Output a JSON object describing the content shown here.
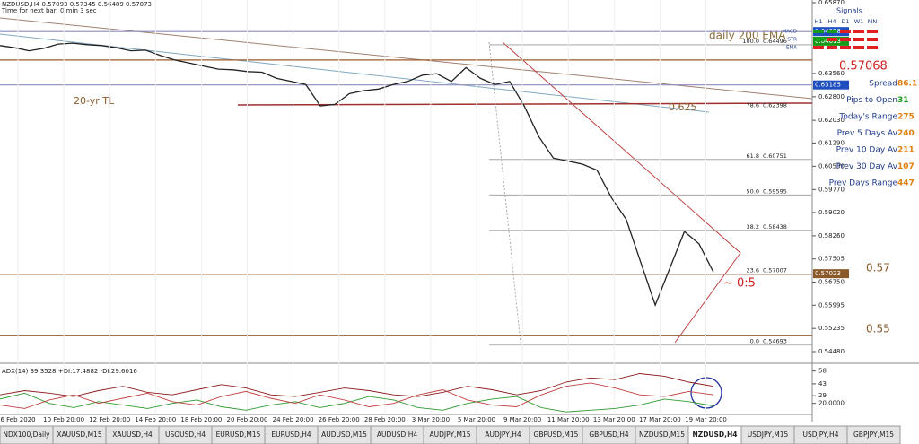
{
  "header": {
    "symbol": "NZDUSD,H4  0.57093 0.57345 0.56489 0.57073",
    "timer": "Time for next bar: 0 min 3 sec"
  },
  "chart_data": {
    "type": "line",
    "name": "NZDUSD close",
    "color": "#222222",
    "values": [
      0.6447,
      0.644,
      0.643,
      0.6438,
      0.6452,
      0.6455,
      0.645,
      0.6447,
      0.644,
      0.643,
      0.6432,
      0.6415,
      0.64,
      0.639,
      0.638,
      0.637,
      0.6368,
      0.6362,
      0.636,
      0.634,
      0.633,
      0.632,
      0.625,
      0.6255,
      0.629,
      0.63,
      0.6305,
      0.632,
      0.633,
      0.635,
      0.6355,
      0.633,
      0.6375,
      0.634,
      0.632,
      0.633,
      0.625,
      0.615,
      0.608,
      0.607,
      0.606,
      0.604,
      0.595,
      0.588,
      0.574,
      0.56,
      0.572,
      0.584,
      0.58,
      0.5707
    ],
    "ylim": [
      0.5448,
      0.6587
    ],
    "yticks": [
      {
        "value": 0.6587,
        "label": "0.65870"
      },
      {
        "value": 0.6356,
        "label": "0.63560"
      },
      {
        "value": 0.628,
        "label": "0.62800"
      },
      {
        "value": 0.6203,
        "label": "0.62030"
      },
      {
        "value": 0.6129,
        "label": "0.61290"
      },
      {
        "value": 0.6053,
        "label": "0.60530"
      },
      {
        "value": 0.5977,
        "label": "0.59770"
      },
      {
        "value": 0.5902,
        "label": "0.59020"
      },
      {
        "value": 0.5826,
        "label": "0.58260"
      },
      {
        "value": 0.57505,
        "label": "0.57505"
      },
      {
        "value": 0.5675,
        "label": "0.56750"
      },
      {
        "value": 0.55995,
        "label": "0.55995"
      },
      {
        "value": 0.55235,
        "label": "0.55235"
      },
      {
        "value": 0.5448,
        "label": "0.54480"
      }
    ],
    "x_labels": [
      "6 Feb 2020",
      "10 Feb 20:00",
      "12 Feb 20:00",
      "14 Feb 20:00",
      "18 Feb 20:00",
      "20 Feb 20:00",
      "24 Feb 20:00",
      "26 Feb 20:00",
      "28 Feb 20:00",
      "3 Mar 20:00",
      "5 Mar 20:00",
      "9 Mar 20:00",
      "11 Mar 20:00",
      "13 Mar 20:00",
      "17 Mar 20:00",
      "19 Mar 20:00"
    ],
    "price_boxes": [
      {
        "value": 0.64928,
        "label": "0.64928",
        "color": "#1f4fbf"
      },
      {
        "value": 0.64613,
        "label": "0.64613",
        "color": "#1a9a1a"
      },
      {
        "value": 0.63185,
        "label": "0.63185",
        "color": "#1f4fbf"
      },
      {
        "value": 0.57023,
        "label": "0.57023",
        "color": "#8b5a2b"
      }
    ],
    "hlines": [
      {
        "value": 0.64928,
        "color": "#8b8bbb"
      },
      {
        "value": 0.64,
        "color": "#9b5a2b"
      },
      {
        "value": 0.63185,
        "color": "#8b8bbb"
      },
      {
        "value": 0.57,
        "color": "#b07040"
      },
      {
        "value": 0.55,
        "color": "#9b5a2b"
      }
    ],
    "fib": [
      {
        "ratio": "100.0",
        "price": 0.64496
      },
      {
        "ratio": "78.6",
        "price": 0.62398
      },
      {
        "ratio": "61.8",
        "price": 0.60751
      },
      {
        "ratio": "50.0",
        "price": 0.59595
      },
      {
        "ratio": "38.2",
        "price": 0.58438
      },
      {
        "ratio": "23.6",
        "price": 0.57007
      },
      {
        "ratio": "0.0",
        "price": 0.54693
      }
    ],
    "annotations": {
      "ema": "daily 200 EMA",
      "price": "0.57068",
      "tl": "20-yr TL",
      "level_625": "0.625",
      "level_57": "0.57",
      "level_55": "0.55",
      "ratio": "~ 0:5"
    }
  },
  "adx": {
    "title": "ADX(14) 39.3528 +DI:17.4882 -DI:29.6016",
    "ylim": [
      7,
      64
    ],
    "yticks": [
      58,
      43,
      29,
      {
        "value": 20,
        "label": "20.0000"
      }
    ],
    "series": [
      {
        "name": "ADX",
        "color": "#8b1a1a",
        "values": [
          30,
          35,
          32,
          28,
          35,
          40,
          33,
          30,
          36,
          42,
          38,
          30,
          28,
          33,
          38,
          35,
          30,
          28,
          33,
          40,
          36,
          30,
          35,
          45,
          50,
          48,
          55,
          52,
          45,
          40
        ]
      },
      {
        "name": "+DI",
        "color": "#2e9a2e",
        "values": [
          25,
          32,
          20,
          15,
          22,
          18,
          14,
          20,
          24,
          16,
          12,
          18,
          22,
          15,
          20,
          28,
          24,
          15,
          12,
          20,
          25,
          28,
          15,
          10,
          12,
          14,
          18,
          25,
          22,
          17
        ]
      },
      {
        "name": "-DI",
        "color": "#c04040",
        "values": [
          18,
          14,
          24,
          30,
          20,
          26,
          32,
          22,
          18,
          28,
          34,
          26,
          20,
          30,
          24,
          16,
          20,
          30,
          36,
          24,
          18,
          16,
          30,
          40,
          44,
          38,
          30,
          28,
          34,
          30
        ]
      }
    ]
  },
  "signals": {
    "title": "Signals",
    "columns": [
      "H1",
      "H4",
      "D1",
      "W1",
      "MN"
    ],
    "rows": [
      {
        "name": "MACD",
        "colors": [
          "#1a9a1a",
          "#1a9a1a",
          "#e02020",
          "#e02020",
          "#e02020"
        ]
      },
      {
        "name": "STR",
        "colors": [
          "#1a9a1a",
          "#e02020",
          "#e02020",
          "#e02020",
          "#e02020"
        ]
      },
      {
        "name": "EMA",
        "colors": [
          "#e02020",
          "#e02020",
          "#e02020",
          "#e02020",
          "#e02020"
        ]
      }
    ]
  },
  "info": [
    {
      "label": "Spread",
      "value": "86.1",
      "color": "#e08010"
    },
    {
      "label": "Pips to Open",
      "value": "31",
      "color": "#1a9a1a"
    },
    {
      "label": "Today's Range",
      "value": "275",
      "color": "#e08010"
    },
    {
      "label": "Prev 5 Days Av",
      "value": "240",
      "color": "#e08010"
    },
    {
      "label": "Prev 10 Day Av",
      "value": "211",
      "color": "#e08010"
    },
    {
      "label": "Prev 30 Day Av",
      "value": "107",
      "color": "#e08010"
    },
    {
      "label": "Prev Days Range",
      "value": "447",
      "color": "#e08010"
    }
  ],
  "tabs": [
    "NDX100,Daily",
    "XAUUSD,M15",
    "XAUUSD,H4",
    "USOUSD,H4",
    "EURUSD,M15",
    "EURUSD,H4",
    "AUDUSD,M15",
    "AUDUSD,H4",
    "AUDJPY,M15",
    "AUDJPY,H4",
    "GBPUSD,M15",
    "GBPUSD,H4",
    "NZDUSD,M15",
    "NZDUSD,H4",
    "USDJPY,M15",
    "USDJPY,H4",
    "GBPJPY,M15"
  ],
  "active_tab": 13
}
